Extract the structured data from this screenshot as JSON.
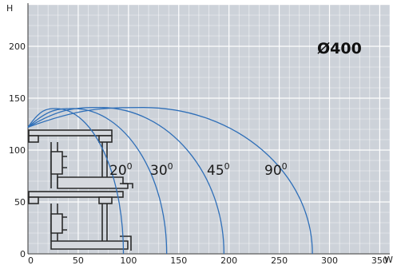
{
  "chart_data": {
    "type": "line",
    "title": "Ø400",
    "xlabel": "W",
    "ylabel": "H",
    "xlim": [
      0,
      360
    ],
    "ylim": [
      0,
      240
    ],
    "x_ticks": [
      "0",
      "50",
      "100",
      "150",
      "200",
      "250",
      "300",
      "350"
    ],
    "y_ticks": [
      "0",
      "50",
      "100",
      "150",
      "200"
    ],
    "grid": true,
    "background_color": "#cdd2d9",
    "curve_color": "#2f6fb8",
    "series": [
      {
        "name": "20⁰",
        "label_base": "20",
        "label_sup": "0",
        "origin": [
          0,
          122
        ],
        "apex": [
          28,
          140
        ],
        "end": [
          95,
          0
        ]
      },
      {
        "name": "30⁰",
        "label_base": "30",
        "label_sup": "0",
        "origin": [
          0,
          122
        ],
        "apex": [
          45,
          140
        ],
        "end": [
          138,
          0
        ]
      },
      {
        "name": "45⁰",
        "label_base": "45",
        "label_sup": "0",
        "origin": [
          0,
          122
        ],
        "apex": [
          72,
          141
        ],
        "end": [
          195,
          0
        ]
      },
      {
        "name": "90⁰",
        "label_base": "90",
        "label_sup": "0",
        "origin": [
          0,
          122
        ],
        "apex": [
          115,
          141
        ],
        "end": [
          283,
          0
        ]
      }
    ]
  }
}
